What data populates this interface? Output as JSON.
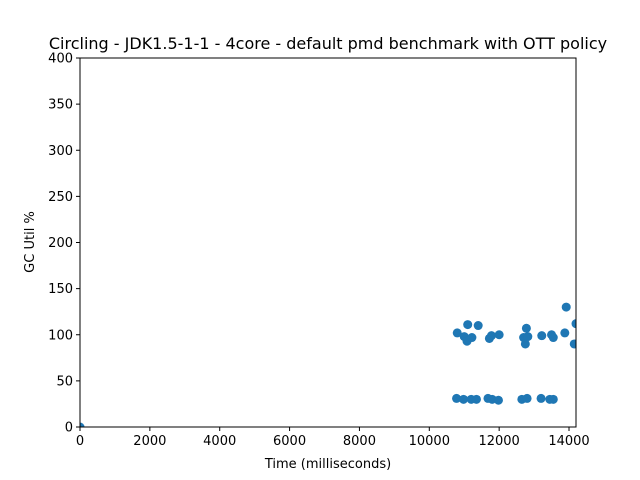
{
  "chart_data": {
    "type": "scatter",
    "title": "Circling - JDK1.5-1-1 - 4core -  default pmd benchmark with OTT policy",
    "xlabel": "Time (milliseconds)",
    "ylabel": "GC Util %",
    "xlim": [
      0,
      14200
    ],
    "ylim": [
      0,
      400
    ],
    "xticks": [
      0,
      2000,
      4000,
      6000,
      8000,
      10000,
      12000,
      14000
    ],
    "yticks": [
      0,
      50,
      100,
      150,
      200,
      250,
      300,
      350,
      400
    ],
    "grid": false,
    "marker_color": "#1f77b4",
    "series": [
      {
        "points": [
          [
            0,
            0
          ],
          [
            10780,
            31
          ],
          [
            10800,
            102
          ],
          [
            10980,
            30
          ],
          [
            11000,
            98
          ],
          [
            11080,
            93
          ],
          [
            11100,
            111
          ],
          [
            11200,
            30
          ],
          [
            11220,
            97
          ],
          [
            11350,
            30
          ],
          [
            11400,
            110
          ],
          [
            11680,
            31
          ],
          [
            11720,
            96
          ],
          [
            11780,
            99
          ],
          [
            11800,
            30
          ],
          [
            11980,
            29
          ],
          [
            12000,
            100
          ],
          [
            12650,
            30
          ],
          [
            12700,
            97
          ],
          [
            12750,
            90
          ],
          [
            12780,
            107
          ],
          [
            12800,
            31
          ],
          [
            12820,
            98
          ],
          [
            13200,
            31
          ],
          [
            13220,
            99
          ],
          [
            13450,
            30
          ],
          [
            13500,
            100
          ],
          [
            13550,
            30
          ],
          [
            13550,
            97
          ],
          [
            13880,
            102
          ],
          [
            13920,
            130
          ],
          [
            14150,
            90
          ],
          [
            14200,
            112
          ]
        ]
      }
    ]
  }
}
